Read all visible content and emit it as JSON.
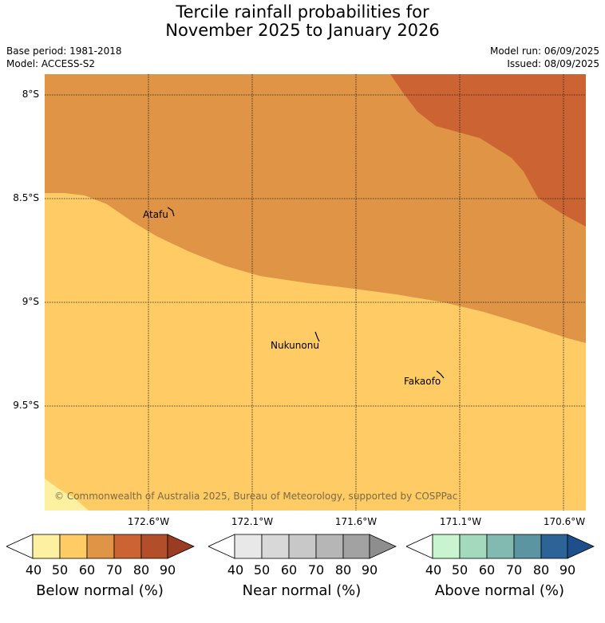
{
  "title": {
    "line1": "Tercile rainfall probabilities for",
    "line2": "November 2025 to January 2026"
  },
  "meta": {
    "base_period": "Base period: 1981-2018",
    "model": "Model: ACCESS-S2",
    "model_run": "Model run: 06/09/2025",
    "issued": "Issued: 08/09/2025"
  },
  "map": {
    "latitude_labels": [
      "8°S",
      "8.5°S",
      "9°S",
      "9.5°S"
    ],
    "longitude_labels": [
      "172.6°W",
      "172.1°W",
      "171.6°W",
      "171.1°W",
      "170.6°W"
    ],
    "places": [
      {
        "name": "Atafu"
      },
      {
        "name": "Nukunonu"
      },
      {
        "name": "Fakaofo"
      }
    ],
    "copyright": "© Commonwealth of Australia 2025, Bureau of Meteorology, supported by COSPPac",
    "colors": {
      "below_40_50": "#fef0a1",
      "below_50_60": "#fecb65",
      "below_60_70": "#e09445",
      "below_70_80": "#cb6432"
    }
  },
  "legends": [
    {
      "label": "Below normal (%)",
      "ticks": [
        "40",
        "50",
        "60",
        "70",
        "80",
        "90"
      ],
      "colors": [
        "#fef0a1",
        "#fecb65",
        "#e09445",
        "#cb6432",
        "#b24f2a",
        "#9b3b22"
      ]
    },
    {
      "label": "Near normal (%)",
      "ticks": [
        "40",
        "50",
        "60",
        "70",
        "80",
        "90"
      ],
      "colors": [
        "#e8e8e8",
        "#d8d8d8",
        "#c8c8c8",
        "#b6b6b6",
        "#a2a2a2",
        "#8e8e8e"
      ]
    },
    {
      "label": "Above normal (%)",
      "ticks": [
        "40",
        "50",
        "60",
        "70",
        "80",
        "90"
      ],
      "colors": [
        "#c8f5cf",
        "#a3d9bc",
        "#82b9b0",
        "#5a95a1",
        "#2c6497",
        "#1e4f8c"
      ]
    }
  ]
}
